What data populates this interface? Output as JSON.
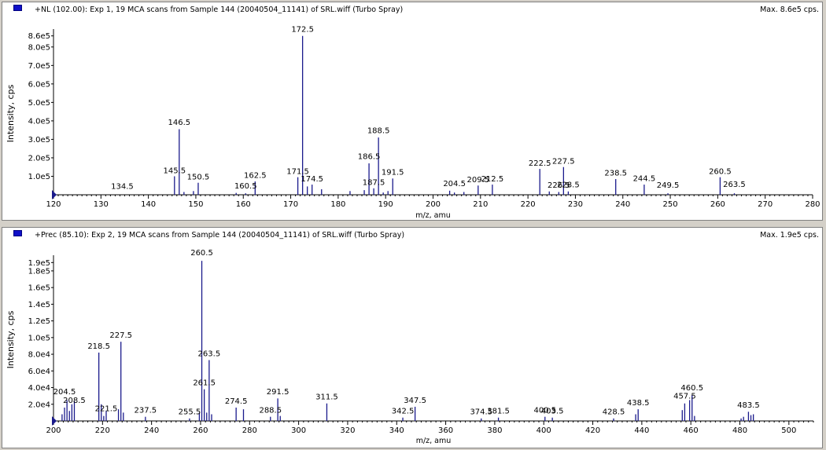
{
  "chart_data": [
    {
      "type": "bar",
      "title": "+NL (102.00): Exp 1, 19 MCA scans from Sample 144 (20040504_11141) of SRL.wiff (Turbo Spray)",
      "max_label": "Max. 8.6e5 cps.",
      "xlabel": "m/z, amu",
      "ylabel": "Intensity, cps",
      "xlim": [
        120,
        280
      ],
      "ylim": [
        0,
        880000
      ],
      "x_ticks": [
        120,
        130,
        140,
        150,
        160,
        170,
        180,
        190,
        200,
        210,
        220,
        230,
        240,
        250,
        260,
        270,
        280
      ],
      "y_ticks": [
        {
          "label": "1.0e5",
          "value": 100000
        },
        {
          "label": "2.0e5",
          "value": 200000
        },
        {
          "label": "3.0e5",
          "value": 300000
        },
        {
          "label": "4.0e5",
          "value": 400000
        },
        {
          "label": "5.0e5",
          "value": 500000
        },
        {
          "label": "6.0e5",
          "value": 600000
        },
        {
          "label": "7.0e5",
          "value": 700000
        },
        {
          "label": "8.0e5",
          "value": 800000
        },
        {
          "label": "8.6e5",
          "value": 860000
        }
      ],
      "peaks": [
        {
          "mz": 134.5,
          "intensity": 0
        },
        {
          "mz": 145.5,
          "intensity": 100000
        },
        {
          "mz": 146.5,
          "intensity": 355000
        },
        {
          "mz": 147.5,
          "intensity": 15000
        },
        {
          "mz": 149.5,
          "intensity": 20000
        },
        {
          "mz": 150.5,
          "intensity": 65000
        },
        {
          "mz": 158.5,
          "intensity": 10000
        },
        {
          "mz": 160.5,
          "intensity": 8000
        },
        {
          "mz": 162.5,
          "intensity": 72000
        },
        {
          "mz": 171.5,
          "intensity": 95000
        },
        {
          "mz": 172.5,
          "intensity": 860000
        },
        {
          "mz": 173.5,
          "intensity": 45000
        },
        {
          "mz": 174.5,
          "intensity": 55000
        },
        {
          "mz": 176.5,
          "intensity": 30000
        },
        {
          "mz": 182.5,
          "intensity": 20000
        },
        {
          "mz": 185.5,
          "intensity": 25000
        },
        {
          "mz": 186.5,
          "intensity": 170000
        },
        {
          "mz": 187.5,
          "intensity": 35000
        },
        {
          "mz": 188.5,
          "intensity": 310000
        },
        {
          "mz": 189.5,
          "intensity": 12000
        },
        {
          "mz": 190.5,
          "intensity": 20000
        },
        {
          "mz": 191.5,
          "intensity": 88000
        },
        {
          "mz": 203.5,
          "intensity": 22000
        },
        {
          "mz": 204.5,
          "intensity": 12000
        },
        {
          "mz": 206.5,
          "intensity": 15000
        },
        {
          "mz": 209.5,
          "intensity": 50000
        },
        {
          "mz": 212.5,
          "intensity": 55000
        },
        {
          "mz": 222.5,
          "intensity": 140000
        },
        {
          "mz": 224.5,
          "intensity": 18000
        },
        {
          "mz": 226.5,
          "intensity": 15000
        },
        {
          "mz": 227.5,
          "intensity": 150000
        },
        {
          "mz": 228.5,
          "intensity": 18000
        },
        {
          "mz": 238.5,
          "intensity": 85000
        },
        {
          "mz": 244.5,
          "intensity": 55000
        },
        {
          "mz": 249.5,
          "intensity": 8000
        },
        {
          "mz": 260.5,
          "intensity": 95000
        },
        {
          "mz": 263.5,
          "intensity": 8000
        }
      ],
      "peak_labels": [
        {
          "mz": 134.5,
          "label": "134.5",
          "intensity": 20000
        },
        {
          "mz": 145.5,
          "label": "145.5",
          "intensity": 105000
        },
        {
          "mz": 146.5,
          "label": "146.5",
          "intensity": 365000
        },
        {
          "mz": 150.5,
          "label": "150.5",
          "intensity": 70000
        },
        {
          "mz": 160.5,
          "label": "160.5",
          "intensity": 22000
        },
        {
          "mz": 162.5,
          "label": "162.5",
          "intensity": 78000
        },
        {
          "mz": 171.5,
          "label": "171.5",
          "intensity": 100000
        },
        {
          "mz": 172.5,
          "label": "172.5",
          "intensity": 870000
        },
        {
          "mz": 174.5,
          "label": "174.5",
          "intensity": 60000
        },
        {
          "mz": 186.5,
          "label": "186.5",
          "intensity": 180000
        },
        {
          "mz": 187.5,
          "label": "187.5",
          "intensity": 40000
        },
        {
          "mz": 188.5,
          "label": "188.5",
          "intensity": 320000
        },
        {
          "mz": 191.5,
          "label": "191.5",
          "intensity": 95000
        },
        {
          "mz": 204.5,
          "label": "204.5",
          "intensity": 35000
        },
        {
          "mz": 209.5,
          "label": "209.5",
          "intensity": 55000
        },
        {
          "mz": 212.5,
          "label": "212.5",
          "intensity": 60000
        },
        {
          "mz": 222.5,
          "label": "222.5",
          "intensity": 145000
        },
        {
          "mz": 226.5,
          "label": "226.5",
          "intensity": 25000
        },
        {
          "mz": 227.5,
          "label": "227.5",
          "intensity": 155000
        },
        {
          "mz": 228.5,
          "label": "228.5",
          "intensity": 28000
        },
        {
          "mz": 238.5,
          "label": "238.5",
          "intensity": 92000
        },
        {
          "mz": 244.5,
          "label": "244.5",
          "intensity": 62000
        },
        {
          "mz": 249.5,
          "label": "249.5",
          "intensity": 25000
        },
        {
          "mz": 260.5,
          "label": "260.5",
          "intensity": 100000
        },
        {
          "mz": 263.5,
          "label": "263.5",
          "intensity": 30000
        }
      ]
    },
    {
      "type": "bar",
      "title": "+Prec (85.10): Exp 2, 19 MCA scans from Sample 144 (20040504_11141) of SRL.wiff (Turbo Spray)",
      "max_label": "Max. 1.9e5 cps.",
      "xlabel": "m/z, amu",
      "ylabel": "Intensity, cps",
      "xlim": [
        200,
        510
      ],
      "ylim": [
        0,
        195000
      ],
      "x_ticks": [
        200,
        220,
        240,
        260,
        280,
        300,
        320,
        340,
        360,
        380,
        400,
        420,
        440,
        460,
        480,
        500
      ],
      "y_ticks": [
        {
          "label": "2.0e4",
          "value": 20000
        },
        {
          "label": "4.0e4",
          "value": 40000
        },
        {
          "label": "6.0e4",
          "value": 60000
        },
        {
          "label": "8.0e4",
          "value": 80000
        },
        {
          "label": "1.0e5",
          "value": 100000
        },
        {
          "label": "1.2e5",
          "value": 120000
        },
        {
          "label": "1.4e5",
          "value": 140000
        },
        {
          "label": "1.6e5",
          "value": 160000
        },
        {
          "label": "1.8e5",
          "value": 180000
        },
        {
          "label": "1.9e5",
          "value": 190000
        }
      ],
      "peaks": [
        {
          "mz": 203.5,
          "intensity": 8000
        },
        {
          "mz": 204.5,
          "intensity": 16000
        },
        {
          "mz": 205.5,
          "intensity": 25000
        },
        {
          "mz": 206.5,
          "intensity": 12000
        },
        {
          "mz": 207.5,
          "intensity": 20000
        },
        {
          "mz": 208.5,
          "intensity": 24000
        },
        {
          "mz": 218.5,
          "intensity": 82000
        },
        {
          "mz": 219.5,
          "intensity": 20000
        },
        {
          "mz": 220.5,
          "intensity": 6000
        },
        {
          "mz": 221.5,
          "intensity": 12000
        },
        {
          "mz": 226.5,
          "intensity": 14000
        },
        {
          "mz": 227.5,
          "intensity": 95000
        },
        {
          "mz": 228.5,
          "intensity": 10000
        },
        {
          "mz": 237.5,
          "intensity": 5000
        },
        {
          "mz": 255.5,
          "intensity": 3000
        },
        {
          "mz": 259.5,
          "intensity": 10000
        },
        {
          "mz": 260.5,
          "intensity": 192000
        },
        {
          "mz": 261.5,
          "intensity": 38000
        },
        {
          "mz": 262.5,
          "intensity": 10000
        },
        {
          "mz": 263.5,
          "intensity": 73000
        },
        {
          "mz": 264.5,
          "intensity": 8000
        },
        {
          "mz": 274.5,
          "intensity": 16000
        },
        {
          "mz": 277.5,
          "intensity": 14000
        },
        {
          "mz": 288.5,
          "intensity": 5000
        },
        {
          "mz": 291.5,
          "intensity": 27000
        },
        {
          "mz": 292.5,
          "intensity": 6000
        },
        {
          "mz": 311.5,
          "intensity": 21000
        },
        {
          "mz": 342.5,
          "intensity": 4000
        },
        {
          "mz": 347.5,
          "intensity": 17000
        },
        {
          "mz": 374.5,
          "intensity": 3000
        },
        {
          "mz": 381.5,
          "intensity": 4000
        },
        {
          "mz": 400.5,
          "intensity": 5000
        },
        {
          "mz": 403.5,
          "intensity": 4000
        },
        {
          "mz": 428.5,
          "intensity": 3000
        },
        {
          "mz": 437.5,
          "intensity": 8000
        },
        {
          "mz": 438.5,
          "intensity": 14000
        },
        {
          "mz": 456.5,
          "intensity": 13000
        },
        {
          "mz": 457.5,
          "intensity": 21000
        },
        {
          "mz": 459.5,
          "intensity": 25000
        },
        {
          "mz": 460.5,
          "intensity": 31000
        },
        {
          "mz": 461.5,
          "intensity": 6000
        },
        {
          "mz": 480.5,
          "intensity": 3000
        },
        {
          "mz": 481.5,
          "intensity": 5000
        },
        {
          "mz": 483.5,
          "intensity": 11000
        },
        {
          "mz": 484.5,
          "intensity": 7000
        },
        {
          "mz": 485.5,
          "intensity": 8000
        }
      ],
      "peak_labels": [
        {
          "mz": 204.5,
          "label": "204.5",
          "intensity": 29000
        },
        {
          "mz": 208.5,
          "label": "208.5",
          "intensity": 19000
        },
        {
          "mz": 218.5,
          "label": "218.5",
          "intensity": 84000
        },
        {
          "mz": 221.5,
          "label": "221.5",
          "intensity": 9000
        },
        {
          "mz": 227.5,
          "label": "227.5",
          "intensity": 97000
        },
        {
          "mz": 237.5,
          "label": "237.5",
          "intensity": 7000
        },
        {
          "mz": 255.5,
          "label": "255.5",
          "intensity": 5000
        },
        {
          "mz": 260.5,
          "label": "260.5",
          "intensity": 196000
        },
        {
          "mz": 261.5,
          "label": "261.5",
          "intensity": 40000
        },
        {
          "mz": 263.5,
          "label": "263.5",
          "intensity": 75000
        },
        {
          "mz": 274.5,
          "label": "274.5",
          "intensity": 18000
        },
        {
          "mz": 288.5,
          "label": "288.5",
          "intensity": 7000
        },
        {
          "mz": 291.5,
          "label": "291.5",
          "intensity": 29000
        },
        {
          "mz": 311.5,
          "label": "311.5",
          "intensity": 23000
        },
        {
          "mz": 342.5,
          "label": "342.5",
          "intensity": 6000
        },
        {
          "mz": 347.5,
          "label": "347.5",
          "intensity": 19000
        },
        {
          "mz": 374.5,
          "label": "374.5",
          "intensity": 5000
        },
        {
          "mz": 381.5,
          "label": "381.5",
          "intensity": 6000
        },
        {
          "mz": 400.5,
          "label": "400.5",
          "intensity": 7000
        },
        {
          "mz": 403.5,
          "label": "403.5",
          "intensity": 6000
        },
        {
          "mz": 428.5,
          "label": "428.5",
          "intensity": 5000
        },
        {
          "mz": 438.5,
          "label": "438.5",
          "intensity": 16000
        },
        {
          "mz": 457.5,
          "label": "457.5",
          "intensity": 24000
        },
        {
          "mz": 460.5,
          "label": "460.5",
          "intensity": 34000
        },
        {
          "mz": 483.5,
          "label": "483.5",
          "intensity": 13000
        }
      ]
    }
  ]
}
